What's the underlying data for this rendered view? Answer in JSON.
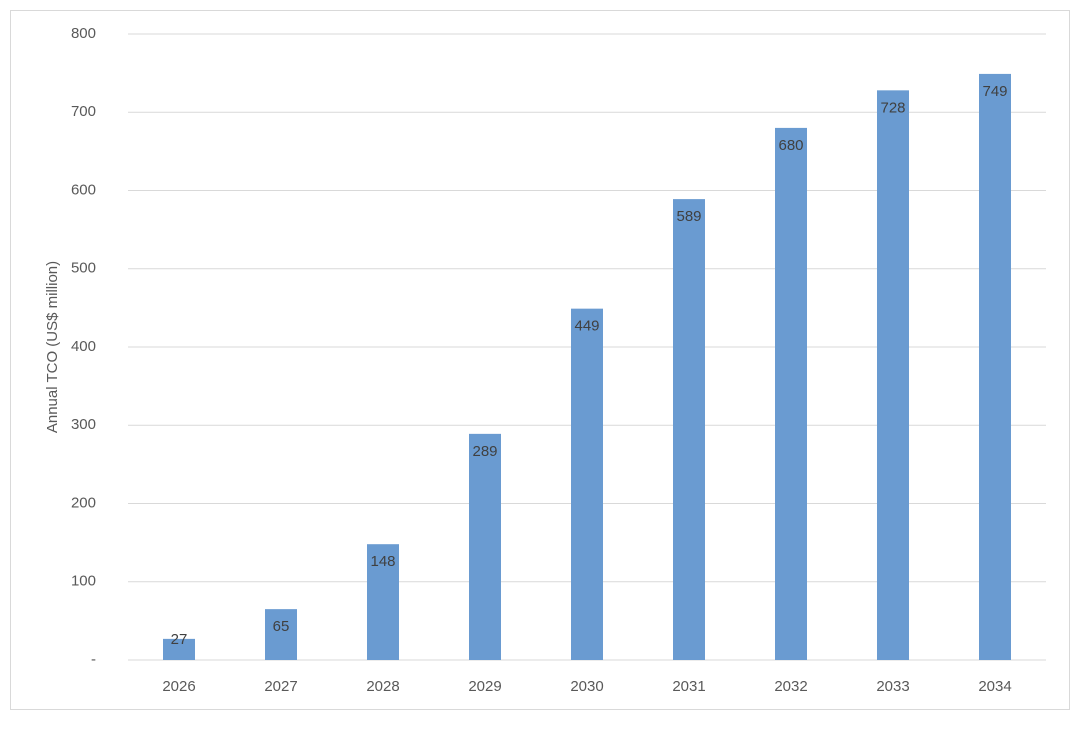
{
  "chart_data": {
    "type": "bar",
    "y_label": "Annual TCO (US$ million)",
    "categories": [
      "2026",
      "2027",
      "2028",
      "2029",
      "2030",
      "2031",
      "2032",
      "2033",
      "2034"
    ],
    "values": [
      27,
      65,
      148,
      289,
      449,
      589,
      680,
      728,
      749
    ],
    "color": "#6a9bd1",
    "ylim": [
      0,
      800
    ],
    "yticks": [
      {
        "value": 0,
        "label": "-"
      },
      100,
      200,
      300,
      400,
      500,
      600,
      700,
      800
    ],
    "grid": true
  }
}
